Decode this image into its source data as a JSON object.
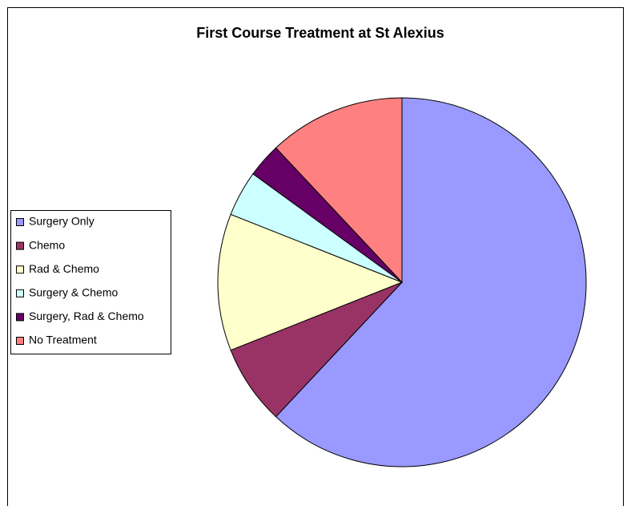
{
  "chart_data": {
    "type": "pie",
    "title": "First Course Treatment at St Alexius",
    "categories": [
      "Surgery Only",
      "Chemo",
      "Rad & Chemo",
      "Surgery & Chemo",
      "Surgery, Rad & Chemo",
      "No Treatment"
    ],
    "values": [
      62,
      7,
      12,
      4,
      3,
      12
    ],
    "colors": [
      "#9999ff",
      "#993366",
      "#ffffcc",
      "#ccffff",
      "#660066",
      "#ff8080"
    ],
    "legend": "left"
  }
}
